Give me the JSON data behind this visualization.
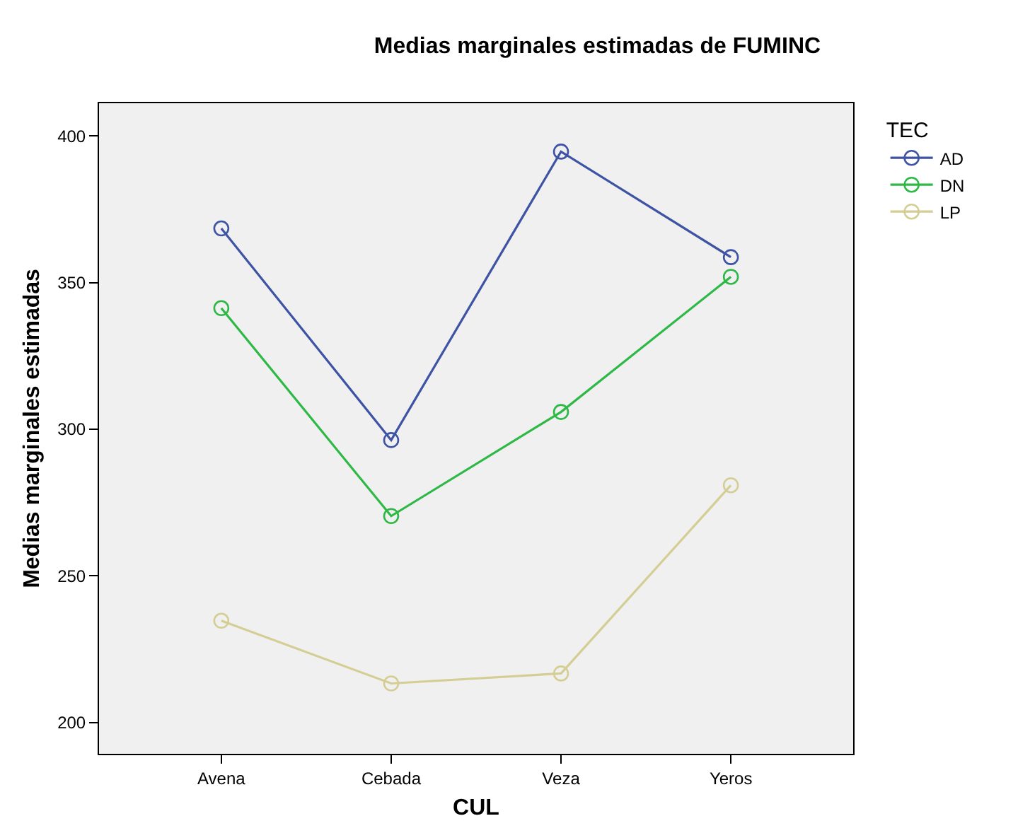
{
  "chart_data": {
    "type": "line",
    "title": "Medias marginales estimadas de FUMINC",
    "xlabel": "CUL",
    "ylabel": "Medias marginales estimadas",
    "legend_title": "TEC",
    "categories": [
      "Avena",
      "Cebada",
      "Veza",
      "Yeros"
    ],
    "series": [
      {
        "name": "AD",
        "color": "#3e53a4",
        "values": [
          368.5,
          296.3,
          394.7,
          358.7
        ]
      },
      {
        "name": "DN",
        "color": "#2eb845",
        "values": [
          341.3,
          270.4,
          305.9,
          352.0
        ]
      },
      {
        "name": "LP",
        "color": "#d4ce94",
        "values": [
          234.7,
          213.3,
          216.7,
          280.9
        ]
      }
    ],
    "ylim": [
      189.3,
      411.2
    ],
    "yticks": [
      200,
      250,
      300,
      350,
      400
    ],
    "grid": false,
    "legend": "top right",
    "marker": "circle",
    "line_style": "solid"
  }
}
